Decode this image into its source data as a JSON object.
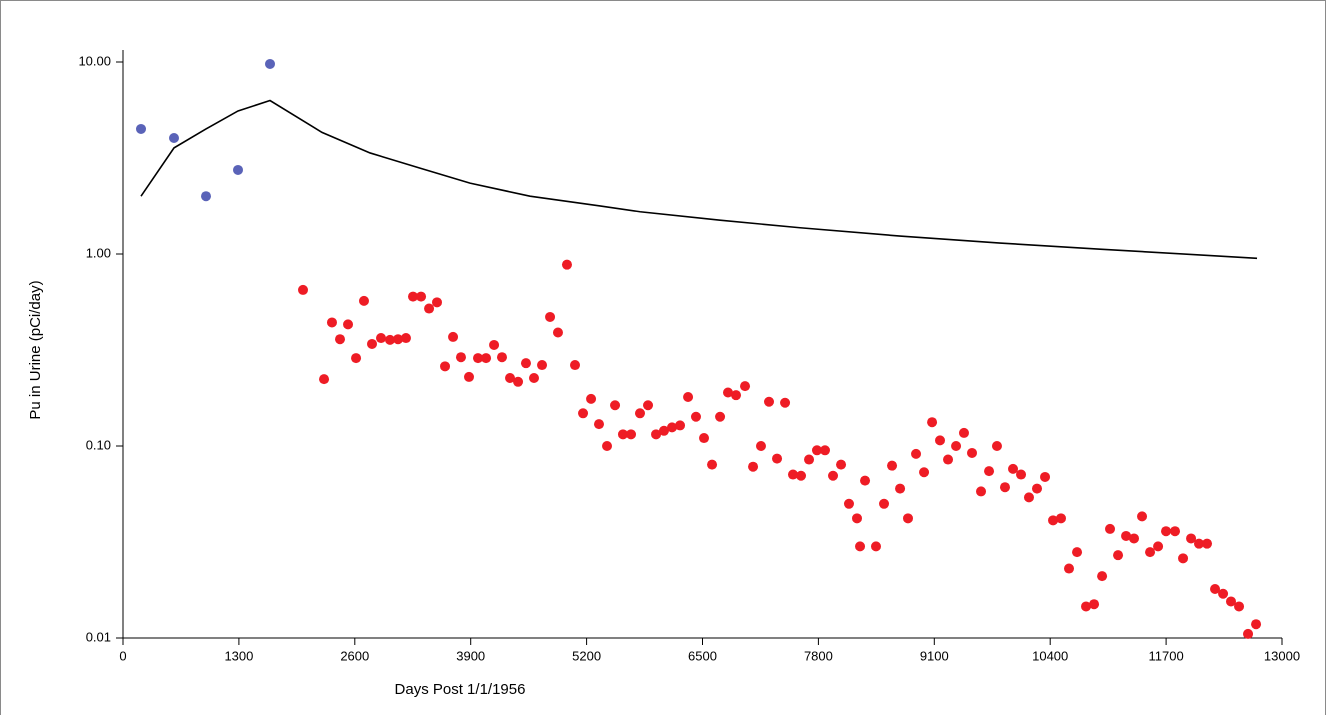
{
  "chart_data": {
    "type": "scatter",
    "x_label": "Days Post 1/1/1956",
    "y_label": "Pu in Urine (pCi/day)",
    "xlim": [
      0,
      13000
    ],
    "ylim": [
      0.01,
      10
    ],
    "ylog": true,
    "grid": false,
    "xticks": [
      0,
      1300,
      2600,
      3900,
      5200,
      6500,
      7800,
      9100,
      10400,
      11700,
      13000
    ],
    "yticks": [
      {
        "value": 0.01,
        "label": "0.01"
      },
      {
        "value": 0.1,
        "label": "0.10"
      },
      {
        "value": 1,
        "label": "1.00"
      },
      {
        "value": 10,
        "label": "10.00"
      }
    ],
    "series": [
      {
        "type": "scatter",
        "color": "#5a63b8",
        "x": [
          202,
          572,
          931,
          1290,
          1649
        ],
        "values": [
          4.48,
          4.02,
          2.0,
          2.74,
          9.77
        ]
      },
      {
        "type": "scatter",
        "color": "#ee1c25",
        "x": [
          2019,
          2255,
          2344,
          2434,
          2524,
          2614,
          2703,
          2793,
          2894,
          2995,
          3085,
          3174,
          3253,
          3343,
          3433,
          3522,
          3612,
          3702,
          3791,
          3881,
          3982,
          4072,
          4162,
          4251,
          4341,
          4431,
          4520,
          4610,
          4700,
          4790,
          4879,
          4980,
          5070,
          5160,
          5250,
          5339,
          5429,
          5519,
          5608,
          5698,
          5799,
          5889,
          5979,
          6068,
          6158,
          6248,
          6338,
          6427,
          6517,
          6607,
          6697,
          6786,
          6876,
          6977,
          7067,
          7156,
          7246,
          7336,
          7426,
          7515,
          7605,
          7695,
          7784,
          7874,
          7964,
          8054,
          8143,
          8233,
          8267,
          8323,
          8446,
          8536,
          8626,
          8716,
          8805,
          8895,
          8985,
          9075,
          9164,
          9254,
          9344,
          9433,
          9523,
          9624,
          9714,
          9803,
          9893,
          9983,
          10073,
          10162,
          10252,
          10342,
          10432,
          10521,
          10611,
          10701,
          10802,
          10892,
          10982,
          11071,
          11161,
          11251,
          11340,
          11430,
          11520,
          11610,
          11699,
          11800,
          11890,
          11980,
          12069,
          12159,
          12249,
          12339,
          12428,
          12518,
          12619,
          12709
        ],
        "values": [
          0.65,
          0.223,
          0.44,
          0.36,
          0.43,
          0.287,
          0.57,
          0.34,
          0.365,
          0.357,
          0.36,
          0.365,
          0.6,
          0.6,
          0.52,
          0.56,
          0.26,
          0.37,
          0.29,
          0.229,
          0.287,
          0.287,
          0.336,
          0.29,
          0.226,
          0.216,
          0.27,
          0.226,
          0.264,
          0.47,
          0.39,
          0.88,
          0.264,
          0.148,
          0.176,
          0.13,
          0.1,
          0.163,
          0.115,
          0.115,
          0.148,
          0.163,
          0.115,
          0.12,
          0.125,
          0.128,
          0.18,
          0.142,
          0.11,
          0.08,
          0.142,
          0.19,
          0.184,
          0.205,
          0.078,
          0.1,
          0.17,
          0.086,
          0.168,
          0.071,
          0.07,
          0.085,
          0.095,
          0.095,
          0.07,
          0.08,
          0.05,
          0.042,
          0.03,
          0.066,
          0.03,
          0.05,
          0.079,
          0.06,
          0.042,
          0.091,
          0.073,
          0.133,
          0.107,
          0.085,
          0.1,
          0.117,
          0.092,
          0.058,
          0.074,
          0.1,
          0.061,
          0.076,
          0.071,
          0.054,
          0.06,
          0.069,
          0.041,
          0.042,
          0.023,
          0.028,
          0.0146,
          0.015,
          0.021,
          0.037,
          0.027,
          0.034,
          0.033,
          0.043,
          0.028,
          0.03,
          0.036,
          0.036,
          0.026,
          0.033,
          0.031,
          0.031,
          0.018,
          0.017,
          0.0155,
          0.0146,
          0.0105,
          0.0118
        ]
      },
      {
        "type": "line",
        "color": "#000000",
        "x": [
          202,
          572,
          931,
          1290,
          1649,
          2232,
          2771,
          3331,
          3892,
          4565,
          5350,
          5800,
          6697,
          7594,
          8716,
          9837,
          10959,
          12720
        ],
        "values": [
          2.0,
          3.57,
          4.48,
          5.56,
          6.3,
          4.3,
          3.36,
          2.8,
          2.34,
          2.0,
          1.78,
          1.66,
          1.5,
          1.37,
          1.24,
          1.14,
          1.06,
          0.95
        ]
      }
    ]
  }
}
